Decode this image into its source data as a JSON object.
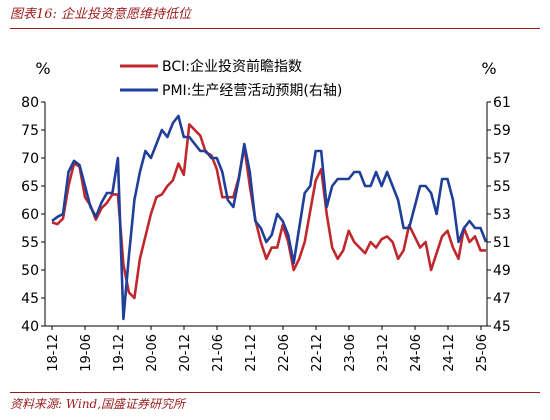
{
  "title": "图表16:  企业投资意愿维持低位",
  "source": "资料来源:  Wind,国盛证券研究所",
  "chart_data": {
    "type": "line",
    "left_unit": "%",
    "right_unit": "%",
    "left_ylim": [
      40,
      80
    ],
    "left_ticks": [
      "40",
      "45",
      "50",
      "55",
      "60",
      "65",
      "70",
      "75",
      "80"
    ],
    "right_ylim": [
      45,
      61
    ],
    "right_ticks": [
      "45",
      "47",
      "49",
      "51",
      "53",
      "55",
      "57",
      "59",
      "61"
    ],
    "x_ticks": [
      "18-12",
      "19-06",
      "19-12",
      "20-06",
      "20-12",
      "21-06",
      "21-12",
      "22-06",
      "22-12",
      "23-06",
      "23-12",
      "24-06",
      "24-12",
      "25-06"
    ],
    "legend_position": "top-center",
    "series": [
      {
        "name": "BCI:企业投资前瞻指数",
        "axis": "left",
        "color": "#c0282d",
        "values": [
          58.5,
          58.2,
          59.2,
          65.0,
          69.0,
          68.5,
          63.0,
          61.5,
          59.0,
          61.0,
          62.0,
          63.5,
          63.5,
          51.0,
          46.0,
          45.0,
          52.0,
          56.0,
          60.0,
          63.0,
          63.5,
          65.0,
          66.0,
          69.0,
          67.0,
          76.0,
          75.0,
          74.0,
          71.0,
          70.5,
          68.0,
          63.0,
          63.0,
          63.0,
          66.5,
          72.0,
          65.0,
          59.0,
          55.0,
          52.0,
          54.0,
          54.0,
          58.0,
          55.0,
          50.0,
          52.0,
          55.0,
          60.5,
          66.0,
          68.0,
          60.0,
          54.0,
          52.0,
          53.5,
          57.0,
          55.0,
          54.0,
          53.0,
          55.0,
          54.0,
          55.5,
          56.0,
          55.0,
          52.0,
          53.5,
          58.0,
          56.0,
          54.0,
          55.0,
          50.0,
          53.0,
          56.0,
          57.0,
          54.0,
          52.0,
          57.5,
          55.0,
          56.0,
          53.5,
          53.5
        ]
      },
      {
        "name": "PMI:生产经营活动预期(右轴)",
        "axis": "right",
        "color": "#1f3f99",
        "values": [
          52.5,
          52.8,
          53.0,
          56.0,
          56.8,
          56.5,
          55.0,
          53.5,
          52.8,
          53.8,
          54.5,
          54.5,
          57.0,
          45.5,
          50.0,
          54.0,
          56.0,
          57.5,
          57.0,
          58.0,
          59.0,
          58.5,
          59.5,
          60.0,
          58.5,
          58.5,
          58.0,
          57.5,
          57.5,
          57.0,
          57.0,
          56.0,
          54.0,
          53.5,
          55.5,
          58.0,
          56.0,
          52.5,
          52.0,
          51.0,
          51.5,
          53.0,
          52.5,
          51.5,
          49.5,
          52.0,
          54.5,
          55.0,
          57.5,
          57.5,
          53.5,
          55.0,
          55.5,
          55.5,
          55.5,
          56.0,
          56.0,
          55.0,
          55.0,
          56.0,
          55.0,
          56.0,
          55.0,
          54.0,
          52.0,
          52.0,
          53.5,
          55.0,
          55.0,
          54.5,
          53.0,
          55.5,
          55.5,
          54.0,
          51.0,
          52.0,
          52.5,
          52.0,
          52.0,
          51.0
        ]
      }
    ]
  }
}
